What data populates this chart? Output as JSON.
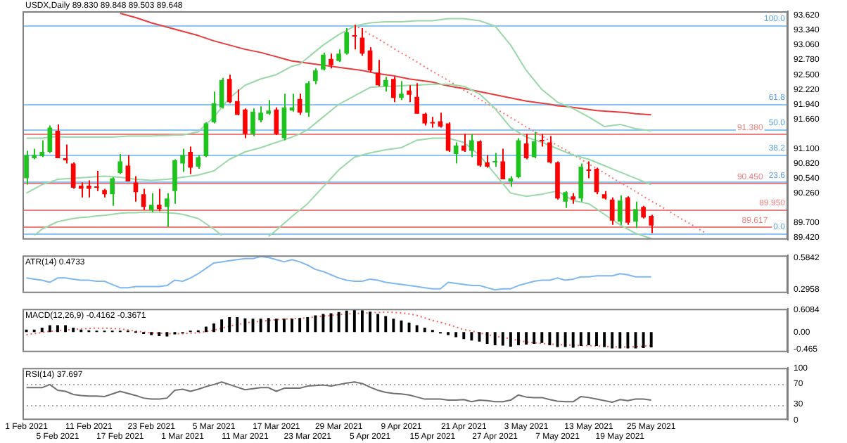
{
  "chart_data": [
    {
      "type": "candlestick",
      "title": "USDX,Daily 89.830 89.848 89.503 89.648",
      "categories": [
        null,
        null,
        null,
        null,
        null,
        null,
        null,
        null,
        null,
        null,
        null,
        null,
        null,
        null,
        null,
        null,
        null,
        null,
        null,
        null,
        null,
        null,
        null,
        null,
        null,
        null,
        null,
        null,
        null,
        null,
        null,
        null,
        null,
        null,
        null,
        null,
        null,
        null,
        null,
        null,
        null,
        null,
        null,
        null,
        null,
        null,
        null,
        null,
        null,
        null,
        null,
        null,
        null,
        null,
        null,
        null,
        null,
        null,
        null,
        null,
        null,
        null,
        null,
        null,
        null,
        null,
        null,
        null,
        null,
        null,
        null,
        null,
        null,
        null,
        null,
        null,
        null,
        null,
        null,
        null,
        null,
        null,
        null,
        null,
        null,
        null,
        null,
        null,
        null,
        null,
        null,
        null,
        null,
        null,
        null,
        null,
        null,
        null
      ],
      "ohlc": [
        [
          90.54,
          91.06,
          90.42,
          90.98
        ],
        [
          90.92,
          91.1,
          90.9,
          90.98
        ],
        [
          90.96,
          91.26,
          90.94,
          91.04
        ],
        [
          91.04,
          91.54,
          91.02,
          91.5
        ],
        [
          91.44,
          91.56,
          90.92,
          90.92
        ],
        [
          90.92,
          91.18,
          90.82,
          90.88
        ],
        [
          90.82,
          90.84,
          90.34,
          90.36
        ],
        [
          90.4,
          90.46,
          90.18,
          90.34
        ],
        [
          90.4,
          90.5,
          90.18,
          90.34
        ],
        [
          90.38,
          90.68,
          90.3,
          90.36
        ],
        [
          90.32,
          90.34,
          90.18,
          90.24
        ],
        [
          90.24,
          90.56,
          90.02,
          90.54
        ],
        [
          90.64,
          91.0,
          90.62,
          90.86
        ],
        [
          90.78,
          90.98,
          90.48,
          90.48
        ],
        [
          90.46,
          90.58,
          90.1,
          90.28
        ],
        [
          90.24,
          90.34,
          89.94,
          90.0
        ],
        [
          89.94,
          90.26,
          89.9,
          90.04
        ],
        [
          90.04,
          90.34,
          89.92,
          89.96
        ],
        [
          90.0,
          90.26,
          89.62,
          90.16
        ],
        [
          90.3,
          90.9,
          90.06,
          90.88
        ],
        [
          90.82,
          91.1,
          90.66,
          90.98
        ],
        [
          91.04,
          91.14,
          90.62,
          90.74
        ],
        [
          90.76,
          90.98,
          90.72,
          90.94
        ],
        [
          90.96,
          91.6,
          90.94,
          91.58
        ],
        [
          91.6,
          92.18,
          91.58,
          91.96
        ],
        [
          91.88,
          92.44,
          91.86,
          92.4
        ],
        [
          92.42,
          92.5,
          91.96,
          91.98
        ],
        [
          92.0,
          92.22,
          91.73,
          91.74
        ],
        [
          91.84,
          91.86,
          91.3,
          91.38
        ],
        [
          91.38,
          91.86,
          91.34,
          91.8
        ],
        [
          91.64,
          91.9,
          91.6,
          91.78
        ],
        [
          91.76,
          92.02,
          91.74,
          91.82
        ],
        [
          91.84,
          91.88,
          91.36,
          91.38
        ],
        [
          91.3,
          92.14,
          91.26,
          91.88
        ],
        [
          91.82,
          92.14,
          91.8,
          91.88
        ],
        [
          92.04,
          92.14,
          91.74,
          91.78
        ],
        [
          91.78,
          92.38,
          91.7,
          92.34
        ],
        [
          92.38,
          92.62,
          92.32,
          92.58
        ],
        [
          92.6,
          92.92,
          92.58,
          92.88
        ],
        [
          92.8,
          92.9,
          92.62,
          92.68
        ],
        [
          92.76,
          92.98,
          92.74,
          92.9
        ],
        [
          92.9,
          93.38,
          92.88,
          93.3
        ],
        [
          93.24,
          93.44,
          92.98,
          93.22
        ],
        [
          93.2,
          93.38,
          92.86,
          92.9
        ],
        [
          92.96,
          93.02,
          92.54,
          92.58
        ],
        [
          92.54,
          92.78,
          92.28,
          92.3
        ],
        [
          92.28,
          92.46,
          92.18,
          92.4
        ],
        [
          92.42,
          92.46,
          91.98,
          92.06
        ],
        [
          92.06,
          92.38,
          92.02,
          92.14
        ],
        [
          92.2,
          92.3,
          91.98,
          92.12
        ],
        [
          92.08,
          92.34,
          91.76,
          91.76
        ],
        [
          91.76,
          91.78,
          91.54,
          91.58
        ],
        [
          91.6,
          91.7,
          91.5,
          91.58
        ],
        [
          91.62,
          91.78,
          91.5,
          91.52
        ],
        [
          91.58,
          91.6,
          91.04,
          91.06
        ],
        [
          91.0,
          91.22,
          90.82,
          91.16
        ],
        [
          91.16,
          91.38,
          91.04,
          91.06
        ],
        [
          91.06,
          91.38,
          90.94,
          91.26
        ],
        [
          91.24,
          91.26,
          90.76,
          90.78
        ],
        [
          90.84,
          90.98,
          90.74,
          90.76
        ],
        [
          90.84,
          91.02,
          90.76,
          90.86
        ],
        [
          90.86,
          91.1,
          90.52,
          90.52
        ],
        [
          90.48,
          90.58,
          90.38,
          90.54
        ],
        [
          90.56,
          91.3,
          90.54,
          91.26
        ],
        [
          91.2,
          91.38,
          90.9,
          90.92
        ],
        [
          90.94,
          91.42,
          90.92,
          91.24
        ],
        [
          91.25,
          91.38,
          91.14,
          91.24
        ],
        [
          91.22,
          91.34,
          90.82,
          90.84
        ],
        [
          90.84,
          90.86,
          90.14,
          90.16
        ],
        [
          90.1,
          90.3,
          89.98,
          90.28
        ],
        [
          90.2,
          90.26,
          90.06,
          90.14
        ],
        [
          90.16,
          90.82,
          90.1,
          90.76
        ],
        [
          90.7,
          90.86,
          90.54,
          90.68
        ],
        [
          90.72,
          90.74,
          90.24,
          90.28
        ],
        [
          90.24,
          90.3,
          90.14,
          90.16
        ],
        [
          90.14,
          90.18,
          89.66,
          89.74
        ],
        [
          89.72,
          90.22,
          89.66,
          90.12
        ],
        [
          90.18,
          90.2,
          89.66,
          89.7
        ],
        [
          89.72,
          90.1,
          89.6,
          89.96
        ],
        [
          90.0,
          90.02,
          89.78,
          89.8
        ],
        [
          89.83,
          89.848,
          89.503,
          89.648
        ],
        null,
        null,
        null,
        null,
        null,
        null,
        null,
        null,
        null,
        null,
        null,
        null,
        null,
        null,
        null,
        null,
        null
      ],
      "colors": [
        "#1ec31e",
        "#1ec31e",
        "#1ec31e",
        "#1ec31e",
        "#ff0000",
        "#ff0000",
        "#ff0000",
        "#ff0000",
        "#ff0000",
        "#ff0000",
        "#ff0000",
        "#1ec31e",
        "#1ec31e",
        "#ff0000",
        "#ff0000",
        "#ff0000",
        "#1ec31e",
        "#ff0000",
        "#1ec31e",
        "#1ec31e",
        "#1ec31e",
        "#ff0000",
        "#1ec31e",
        "#1ec31e",
        "#1ec31e",
        "#1ec31e",
        "#ff0000",
        "#ff0000",
        "#ff0000",
        "#1ec31e",
        "#1ec31e",
        "#1ec31e",
        "#ff0000",
        "#1ec31e",
        "#1ec31e",
        "#ff0000",
        "#1ec31e",
        "#1ec31e",
        "#1ec31e",
        "#ff0000",
        "#1ec31e",
        "#1ec31e",
        "#ff0000",
        "#ff0000",
        "#ff0000",
        "#ff0000",
        "#1ec31e",
        "#ff0000",
        "#1ec31e",
        "#ff0000",
        "#ff0000",
        "#ff0000",
        "#ff0000",
        "#ff0000",
        "#ff0000",
        "#1ec31e",
        "#ff0000",
        "#1ec31e",
        "#ff0000",
        "#ff0000",
        "#1ec31e",
        "#ff0000",
        "#1ec31e",
        "#1ec31e",
        "#ff0000",
        "#1ec31e",
        "#ff0000",
        "#ff0000",
        "#ff0000",
        "#1ec31e",
        "#ff0000",
        "#1ec31e",
        "#ff0000",
        "#ff0000",
        "#ff0000",
        "#ff0000",
        "#1ec31e",
        "#ff0000",
        "#1ec31e",
        "#ff0000",
        "#ff0000",
        null,
        null,
        null,
        null,
        null,
        null,
        null,
        null,
        null,
        null,
        null,
        null,
        null,
        null,
        null,
        null,
        null
      ],
      "series": [
        {
          "type": "line",
          "color": "#9ad8a8",
          "values": [
            91.3,
            91.3,
            91.3,
            91.32,
            91.33,
            91.32,
            91.32,
            91.32,
            91.32,
            91.32,
            91.32,
            91.32,
            91.33,
            91.34,
            91.34,
            91.34,
            91.34,
            91.35,
            91.35,
            91.36,
            91.36,
            91.39,
            91.42,
            91.56,
            91.7,
            91.88,
            92.06,
            92.18,
            92.3,
            92.36,
            92.42,
            92.46,
            92.5,
            92.58,
            92.66,
            92.7,
            92.82,
            92.94,
            93.06,
            93.16,
            93.26,
            93.34,
            93.42,
            93.45,
            93.48,
            93.49,
            93.5,
            93.5,
            93.5,
            93.51,
            93.52,
            93.52,
            93.52,
            93.54,
            93.56,
            93.56,
            93.56,
            93.54,
            93.52,
            93.47,
            93.42,
            93.24,
            93.06,
            92.82,
            92.58,
            92.4,
            92.22,
            92.1,
            91.98,
            91.92,
            91.86,
            91.78,
            91.7,
            91.61,
            91.52,
            91.54,
            91.56,
            91.52,
            91.48,
            91.46,
            91.44,
            null,
            null,
            null,
            null,
            null,
            null,
            null,
            null,
            null,
            null,
            null,
            null,
            null,
            null,
            null,
            null,
            null
          ]
        },
        {
          "type": "line",
          "color": "#9ad8a8",
          "values": [
            90.26,
            90.34,
            90.42,
            90.47,
            90.52,
            90.53,
            90.54,
            90.55,
            90.56,
            90.57,
            90.58,
            90.57,
            90.56,
            90.54,
            90.52,
            90.51,
            90.5,
            90.51,
            90.52,
            90.54,
            90.56,
            90.58,
            90.6,
            90.64,
            90.68,
            90.79,
            90.9,
            90.97,
            91.04,
            91.08,
            91.12,
            91.17,
            91.22,
            91.27,
            91.32,
            91.38,
            91.46,
            91.58,
            91.7,
            91.82,
            91.94,
            92.02,
            92.1,
            92.18,
            92.26,
            92.27,
            92.28,
            92.28,
            92.29,
            92.3,
            92.3,
            92.31,
            92.32,
            92.32,
            92.32,
            92.3,
            92.28,
            92.21,
            92.14,
            92.0,
            91.86,
            91.68,
            91.5,
            91.41,
            91.32,
            91.27,
            91.22,
            91.16,
            91.1,
            91.04,
            90.98,
            90.94,
            90.9,
            90.84,
            90.78,
            90.72,
            90.66,
            90.6,
            90.54,
            90.48,
            90.42,
            null,
            null,
            null,
            null,
            null,
            null,
            null,
            null,
            null,
            null,
            null,
            null,
            null,
            null,
            null,
            null,
            null
          ]
        },
        {
          "type": "line",
          "color": "#9ad8a8",
          "values": [
            null,
            89.46,
            89.58,
            89.65,
            89.72,
            89.75,
            89.78,
            89.8,
            89.81,
            89.83,
            89.84,
            89.86,
            89.88,
            89.89,
            89.89,
            89.9,
            89.9,
            89.9,
            89.89,
            89.88,
            89.86,
            89.82,
            89.78,
            89.68,
            89.58,
            89.46,
            null,
            null,
            null,
            null,
            null,
            89.44,
            89.56,
            89.69,
            89.82,
            89.94,
            90.06,
            90.22,
            90.38,
            90.54,
            90.7,
            90.82,
            90.94,
            90.98,
            91.02,
            91.05,
            91.08,
            91.1,
            91.12,
            91.19,
            91.26,
            91.28,
            91.3,
            91.3,
            91.3,
            91.26,
            91.22,
            91.1,
            90.98,
            90.8,
            90.62,
            90.44,
            90.26,
            90.23,
            90.2,
            90.22,
            90.24,
            90.27,
            90.3,
            90.21,
            90.12,
            90.09,
            90.06,
            89.96,
            89.86,
            89.76,
            89.66,
            89.58,
            89.5,
            89.45,
            89.4,
            null,
            null,
            null,
            null,
            null,
            null,
            null,
            null,
            null,
            null,
            null,
            null,
            null,
            null,
            null,
            null,
            null
          ]
        },
        {
          "type": "line",
          "color": "#e83c3c",
          "values": [
            null,
            null,
            null,
            null,
            null,
            null,
            null,
            null,
            null,
            null,
            null,
            null,
            93.66,
            93.62,
            93.58,
            93.53,
            93.48,
            93.44,
            93.4,
            93.36,
            93.32,
            93.28,
            93.24,
            93.19,
            93.14,
            93.1,
            93.06,
            93.02,
            92.98,
            92.95,
            92.92,
            92.88,
            92.84,
            92.8,
            92.76,
            92.74,
            92.72,
            92.7,
            92.68,
            92.66,
            92.64,
            92.62,
            92.6,
            92.58,
            92.55,
            92.52,
            92.5,
            92.48,
            92.45,
            92.42,
            92.4,
            92.38,
            92.36,
            92.32,
            92.29,
            92.26,
            92.24,
            92.21,
            92.18,
            92.15,
            92.12,
            92.09,
            92.06,
            92.03,
            92.0,
            91.98,
            91.96,
            91.94,
            91.91,
            91.9,
            91.88,
            91.86,
            91.84,
            91.82,
            91.81,
            91.8,
            91.79,
            91.78,
            91.76,
            91.75,
            91.74,
            null,
            null,
            null,
            null,
            null,
            null,
            null,
            null,
            null,
            null,
            null,
            null,
            null,
            null,
            null,
            null,
            null
          ]
        },
        {
          "type": "line",
          "color": "#ff7070",
          "line_style": "dotted",
          "values": [
            null,
            null,
            null,
            null,
            null,
            null,
            null,
            null,
            null,
            null,
            null,
            null,
            null,
            null,
            null,
            null,
            null,
            null,
            null,
            null,
            null,
            null,
            null,
            null,
            null,
            null,
            null,
            null,
            null,
            null,
            null,
            null,
            null,
            null,
            null,
            null,
            null,
            null,
            null,
            null,
            null,
            null,
            93.44,
            93.35,
            93.26,
            93.18,
            93.09,
            93.0,
            92.91,
            92.83,
            92.74,
            92.65,
            92.56,
            92.48,
            92.39,
            92.3,
            92.21,
            92.13,
            92.04,
            91.95,
            91.86,
            91.78,
            91.69,
            91.6,
            91.51,
            91.43,
            91.34,
            91.25,
            91.16,
            91.08,
            90.99,
            90.9,
            90.81,
            90.73,
            90.64,
            90.55,
            90.46,
            90.38,
            90.29,
            90.2,
            90.11,
            90.03,
            89.94,
            89.85,
            89.76,
            89.68,
            89.59,
            89.5,
            null,
            null,
            null,
            null,
            null,
            null,
            null,
            null,
            null,
            null
          ]
        }
      ],
      "ref_lines": [
        {
          "axis": "y",
          "value": 93.44,
          "color": "#8cc4f5"
        },
        {
          "axis": "y",
          "value": 91.95,
          "color": "#8cc4f5"
        },
        {
          "axis": "y",
          "value": 91.47,
          "color": "#8cc4f5"
        },
        {
          "axis": "y",
          "value": 90.99,
          "color": "#8cc4f5"
        },
        {
          "axis": "y",
          "value": 90.47,
          "color": "#8cc4f5"
        },
        {
          "axis": "y",
          "value": 89.5,
          "color": "#8cc4f5"
        },
        {
          "axis": "y",
          "value": 91.38,
          "label": "91.380",
          "color": "#f08080"
        },
        {
          "axis": "y",
          "value": 90.45,
          "label": "90.450",
          "color": "#f08080"
        },
        {
          "axis": "y",
          "value": 89.95,
          "label": "89.950",
          "color": "#f08080"
        },
        {
          "axis": "y",
          "value": 89.617,
          "label": "89.617",
          "color": "#f08080"
        }
      ],
      "annotations": [
        "100.0",
        "61.8",
        "50.0",
        "38.2",
        "23.6",
        "0.0"
      ],
      "ylim": [
        89.38,
        93.7
      ],
      "yticks": [
        {
          "value": 93.62,
          "label": "93.620"
        },
        {
          "value": 93.34,
          "label": "93.340"
        },
        {
          "value": 93.06,
          "label": "93.060"
        },
        {
          "value": 92.78,
          "label": "92.780"
        },
        {
          "value": 92.5,
          "label": "92.500"
        },
        {
          "value": 92.22,
          "label": "92.220"
        },
        {
          "value": 91.94,
          "label": "91.940"
        },
        {
          "value": 91.66,
          "label": "91.660"
        },
        {
          "value": 91.1,
          "label": "91.100"
        },
        {
          "value": 90.82,
          "label": "90.820"
        },
        {
          "value": 90.54,
          "label": "90.540"
        },
        {
          "value": 90.26,
          "label": "90.260"
        },
        {
          "value": 89.7,
          "label": "89.700"
        },
        {
          "value": 89.42,
          "label": "89.420"
        }
      ],
      "tick_labels": "y",
      "legend": false,
      "grid": false
    },
    {
      "type": "line",
      "title": "ATR(14) 0.4733",
      "categories": [
        null,
        null,
        null,
        null,
        null,
        null,
        null,
        null,
        null,
        null,
        null,
        null,
        null,
        null,
        null,
        null,
        null,
        null,
        null,
        null,
        null,
        null,
        null,
        null,
        null,
        null,
        null,
        null,
        null,
        null,
        null,
        null,
        null,
        null,
        null,
        null,
        null,
        null,
        null,
        null,
        null,
        null,
        null,
        null,
        null,
        null,
        null,
        null,
        null,
        null,
        null,
        null,
        null,
        null,
        null,
        null,
        null,
        null,
        null,
        null,
        null,
        null,
        null,
        null,
        null,
        null,
        null,
        null,
        null,
        null,
        null,
        null,
        null,
        null,
        null,
        null,
        null,
        null,
        null,
        null,
        null,
        null,
        null,
        null,
        null,
        null,
        null,
        null,
        null,
        null,
        null,
        null,
        null,
        null,
        null,
        null,
        null,
        null
      ],
      "series": [
        {
          "color": "#7fb8f0",
          "values": [
            0.4,
            0.39,
            0.38,
            0.36,
            0.4,
            0.4,
            0.39,
            0.38,
            0.38,
            0.37,
            0.37,
            0.34,
            0.31,
            0.31,
            0.32,
            0.32,
            0.32,
            0.32,
            0.33,
            0.38,
            0.37,
            0.4,
            0.44,
            0.49,
            0.54,
            0.55,
            0.56,
            0.57,
            0.58,
            0.58,
            0.6,
            0.59,
            0.57,
            0.55,
            0.57,
            0.55,
            0.52,
            0.48,
            0.46,
            0.43,
            0.4,
            0.38,
            0.37,
            0.37,
            0.39,
            0.38,
            0.36,
            0.35,
            0.34,
            0.33,
            0.32,
            0.31,
            0.3,
            0.3,
            0.36,
            0.35,
            0.34,
            0.33,
            0.33,
            0.31,
            0.29,
            0.3,
            0.3,
            0.33,
            0.35,
            0.37,
            0.38,
            0.38,
            0.4,
            0.38,
            0.39,
            0.41,
            0.41,
            0.42,
            0.42,
            0.42,
            0.44,
            0.43,
            0.41,
            0.41,
            0.41,
            null,
            null,
            null,
            null,
            null,
            null,
            null,
            null,
            null,
            null,
            null,
            null,
            null,
            null,
            null,
            null,
            null
          ]
        }
      ],
      "ylim": [
        0.26,
        0.61
      ],
      "yticks": [
        {
          "value": 0.5842,
          "label": "0.5842"
        },
        {
          "value": 0.2958,
          "label": "0.2958"
        }
      ],
      "tick_labels": "y",
      "legend": false,
      "grid": false
    },
    {
      "type": "bar",
      "title": "MACD(12,26,9) -0.4162 -0.3671",
      "categories": [
        null,
        null,
        null,
        null,
        null,
        null,
        null,
        null,
        null,
        null,
        null,
        null,
        null,
        null,
        null,
        null,
        null,
        null,
        null,
        null,
        null,
        null,
        null,
        null,
        null,
        null,
        null,
        null,
        null,
        null,
        null,
        null,
        null,
        null,
        null,
        null,
        null,
        null,
        null,
        null,
        null,
        null,
        null,
        null,
        null,
        null,
        null,
        null,
        null,
        null,
        null,
        null,
        null,
        null,
        null,
        null,
        null,
        null,
        null,
        null,
        null,
        null,
        null,
        null,
        null,
        null,
        null,
        null,
        null,
        null,
        null,
        null,
        null,
        null,
        null,
        null,
        null,
        null,
        null,
        null,
        null,
        null,
        null,
        null,
        null,
        null,
        null,
        null,
        null,
        null,
        null,
        null,
        null,
        null,
        null,
        null,
        null,
        null
      ],
      "series": [
        {
          "color": "#000000",
          "values": [
            0.07,
            0.07,
            0.12,
            0.19,
            0.19,
            0.19,
            0.12,
            0.07,
            0.05,
            0.03,
            0.02,
            0.03,
            0.01,
            0.02,
            0.0,
            -0.05,
            -0.08,
            -0.11,
            -0.12,
            -0.06,
            -0.01,
            0.01,
            0.05,
            0.15,
            0.24,
            0.35,
            0.41,
            0.41,
            0.38,
            0.37,
            0.37,
            0.39,
            0.37,
            0.37,
            0.37,
            0.39,
            0.41,
            0.46,
            0.5,
            0.52,
            0.55,
            0.59,
            0.62,
            0.6,
            0.56,
            0.5,
            0.44,
            0.37,
            0.32,
            0.26,
            0.19,
            0.12,
            0.06,
            -0.02,
            -0.08,
            -0.14,
            -0.19,
            -0.23,
            -0.26,
            -0.32,
            -0.36,
            -0.37,
            -0.4,
            -0.36,
            -0.34,
            -0.32,
            -0.3,
            -0.36,
            -0.41,
            -0.41,
            -0.43,
            -0.38,
            -0.36,
            -0.38,
            -0.41,
            -0.45,
            -0.45,
            -0.45,
            -0.45,
            -0.44,
            -0.42,
            null,
            null,
            null,
            null,
            null,
            null,
            null,
            null,
            null,
            null,
            null,
            null,
            null,
            null,
            null,
            null,
            null
          ]
        },
        {
          "type": "line",
          "color": "#ff5a5a",
          "line_style": "dotted",
          "values": [
            -0.07,
            -0.04,
            -0.01,
            0.02,
            0.04,
            0.06,
            0.07,
            0.09,
            0.1,
            0.11,
            0.11,
            0.1,
            0.09,
            0.06,
            0.03,
            0.0,
            -0.02,
            -0.03,
            -0.04,
            -0.04,
            -0.04,
            -0.03,
            -0.02,
            0.02,
            0.05,
            0.11,
            0.16,
            0.21,
            0.25,
            0.28,
            0.3,
            0.32,
            0.34,
            0.36,
            0.37,
            0.38,
            0.39,
            0.42,
            0.44,
            0.46,
            0.48,
            0.5,
            0.51,
            0.52,
            0.53,
            0.54,
            0.55,
            0.54,
            0.53,
            0.5,
            0.46,
            0.39,
            0.32,
            0.27,
            0.21,
            0.14,
            0.07,
            0.03,
            -0.02,
            -0.07,
            -0.11,
            -0.15,
            -0.18,
            -0.23,
            -0.27,
            -0.29,
            -0.31,
            -0.33,
            -0.34,
            -0.35,
            -0.36,
            -0.37,
            -0.37,
            -0.38,
            -0.39,
            -0.4,
            -0.41,
            -0.41,
            -0.4,
            -0.39,
            -0.37,
            null,
            null,
            null,
            null,
            null,
            null,
            null,
            null,
            null,
            null,
            null,
            null,
            null,
            null,
            null,
            null,
            null
          ]
        }
      ],
      "ylim": [
        -0.55,
        0.64
      ],
      "yticks": [
        {
          "value": 0.6084,
          "label": "0.6084"
        },
        {
          "value": 0,
          "label": "0.00"
        },
        {
          "value": -0.465,
          "label": "-0.465"
        }
      ],
      "tick_labels": "y",
      "legend": false,
      "grid": false
    },
    {
      "type": "line",
      "title": "RSI(14) 37.697",
      "categories": [
        "1 Feb 2021",
        null,
        null,
        null,
        "5 Feb 2021",
        null,
        null,
        null,
        "11 Feb 2021",
        null,
        null,
        null,
        "17 Feb 2021",
        null,
        null,
        null,
        "23 Feb 2021",
        null,
        null,
        null,
        "1 Mar 2021",
        null,
        null,
        null,
        "5 Mar 2021",
        null,
        null,
        null,
        "11 Mar 2021",
        null,
        null,
        null,
        "17 Mar 2021",
        null,
        null,
        null,
        "23 Mar 2021",
        null,
        null,
        null,
        "29 Mar 2021",
        null,
        null,
        null,
        "5 Apr 2021",
        null,
        null,
        null,
        "9 Apr 2021",
        null,
        null,
        null,
        "15 Apr 2021",
        null,
        null,
        null,
        "21 Apr 2021",
        null,
        null,
        null,
        "27 Apr 2021",
        null,
        null,
        null,
        "3 May 2021",
        null,
        null,
        null,
        "7 May 2021",
        null,
        null,
        null,
        "13 May 2021",
        null,
        null,
        null,
        "19 May 2021",
        null,
        null,
        null,
        "25 May 2021",
        null,
        null,
        null,
        null,
        null,
        null,
        null,
        null,
        null,
        null,
        null,
        null,
        null,
        null,
        null,
        null,
        null
      ],
      "series": [
        {
          "color": "#707070",
          "values": [
            62,
            62,
            62,
            68,
            57,
            55,
            49,
            47,
            46,
            46,
            45,
            50,
            55,
            51,
            47,
            42,
            40,
            40,
            42,
            57,
            59,
            55,
            59,
            64,
            68,
            73,
            68,
            63,
            58,
            60,
            62,
            62,
            55,
            61,
            61,
            61,
            65,
            66,
            67,
            65,
            68,
            71,
            73,
            70,
            63,
            57,
            53,
            51,
            50,
            48,
            44,
            40,
            40,
            40,
            38,
            38,
            39,
            35,
            38,
            37,
            35,
            35,
            38,
            48,
            44,
            43,
            43,
            39,
            36,
            35,
            35,
            45,
            43,
            40,
            37,
            34,
            39,
            37,
            40,
            40,
            38,
            null,
            null,
            null,
            null,
            null,
            null,
            null,
            null,
            null,
            null,
            null,
            null,
            null,
            null,
            null,
            null,
            null
          ]
        }
      ],
      "ref_lines": [
        {
          "axis": "y",
          "value": 70,
          "color": "#aaaaaa",
          "line_style": "dotted"
        },
        {
          "axis": "y",
          "value": 30,
          "color": "#aaaaaa",
          "line_style": "dotted"
        }
      ],
      "ylim": [
        0,
        100
      ],
      "yticks": [
        100,
        70,
        30,
        0
      ],
      "legend": false,
      "grid": false
    }
  ]
}
